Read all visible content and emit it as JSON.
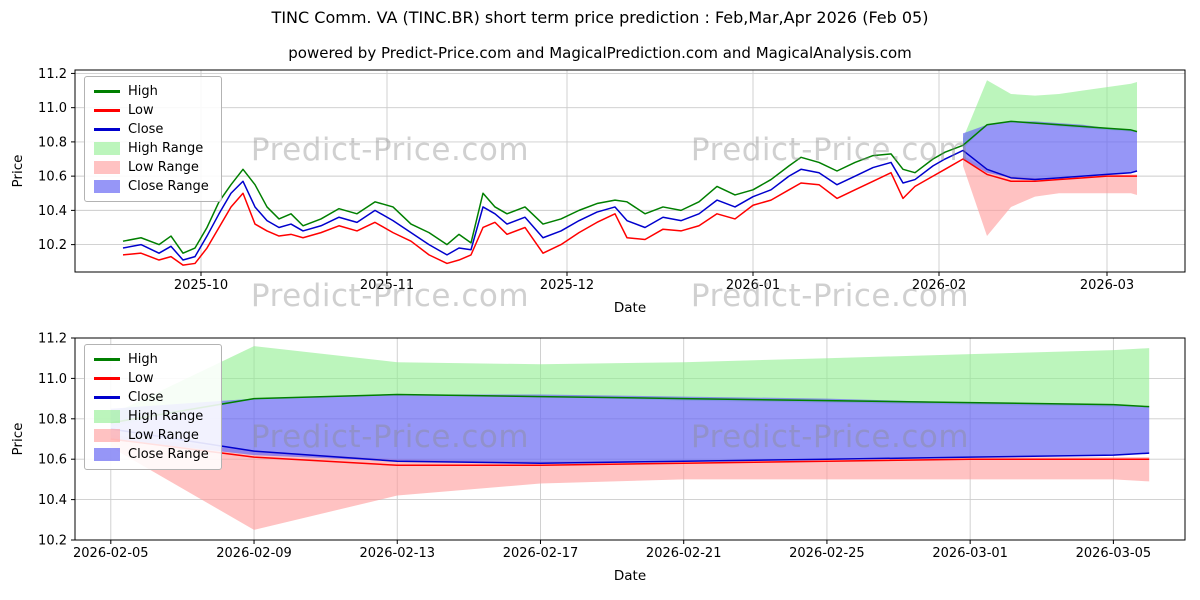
{
  "watermark": {
    "text": "Predict-Price.com"
  },
  "legend": {
    "position": "upper left",
    "entries": [
      {
        "key": "high",
        "label": "High",
        "swatch": "line",
        "color": "#007f00"
      },
      {
        "key": "low",
        "label": "Low",
        "swatch": "line",
        "color": "#ff0000"
      },
      {
        "key": "close",
        "label": "Close",
        "swatch": "line",
        "color": "#0000cd"
      },
      {
        "key": "high-range",
        "label": "High Range",
        "swatch": "patch",
        "color": "#90ee90",
        "opacity": 0.6
      },
      {
        "key": "low-range",
        "label": "Low Range",
        "swatch": "patch",
        "color": "#ff9999",
        "opacity": 0.6
      },
      {
        "key": "close-range",
        "label": "Close Range",
        "swatch": "patch",
        "color": "#6a6af4",
        "opacity": 0.7
      }
    ]
  },
  "chart_data": {
    "type": "line",
    "title": "TINC Comm. VA (TINC.BR) short term price prediction : Feb,Mar,Apr 2026 (Feb 05)",
    "subtitle": "powered by Predict-Price.com and MagicalPrediction.com and MagicalAnalysis.com",
    "styles": {
      "high_color": "#007f00",
      "low_color": "#ff0000",
      "close_color": "#0000cd",
      "high_range_color": "#90ee90",
      "high_range_opacity": 0.6,
      "low_range_color": "#ff9999",
      "low_range_opacity": 0.6,
      "close_range_color": "#6a6af4",
      "close_range_opacity": 0.7,
      "grid_color": "#cccccc"
    },
    "historical": {
      "dates": [
        "2025-09-18",
        "2025-09-21",
        "2025-09-24",
        "2025-09-26",
        "2025-09-28",
        "2025-09-30",
        "2025-10-02",
        "2025-10-04",
        "2025-10-06",
        "2025-10-08",
        "2025-10-10",
        "2025-10-12",
        "2025-10-14",
        "2025-10-16",
        "2025-10-18",
        "2025-10-21",
        "2025-10-24",
        "2025-10-27",
        "2025-10-30",
        "2025-11-02",
        "2025-11-05",
        "2025-11-08",
        "2025-11-11",
        "2025-11-13",
        "2025-11-15",
        "2025-11-17",
        "2025-11-19",
        "2025-11-21",
        "2025-11-24",
        "2025-11-27",
        "2025-11-30",
        "2025-12-03",
        "2025-12-06",
        "2025-12-09",
        "2025-12-11",
        "2025-12-14",
        "2025-12-17",
        "2025-12-20",
        "2025-12-23",
        "2025-12-26",
        "2025-12-29",
        "2026-01-01",
        "2026-01-04",
        "2026-01-07",
        "2026-01-09",
        "2026-01-12",
        "2026-01-15",
        "2026-01-18",
        "2026-01-21",
        "2026-01-24",
        "2026-01-26",
        "2026-01-28",
        "2026-01-31",
        "2026-02-02",
        "2026-02-05"
      ],
      "high": [
        10.22,
        10.24,
        10.2,
        10.25,
        10.15,
        10.18,
        10.3,
        10.45,
        10.55,
        10.64,
        10.55,
        10.42,
        10.35,
        10.38,
        10.31,
        10.35,
        10.41,
        10.38,
        10.45,
        10.42,
        10.32,
        10.27,
        10.2,
        10.26,
        10.21,
        10.5,
        10.42,
        10.38,
        10.42,
        10.32,
        10.35,
        10.4,
        10.44,
        10.46,
        10.45,
        10.38,
        10.42,
        10.4,
        10.45,
        10.54,
        10.49,
        10.52,
        10.58,
        10.66,
        10.71,
        10.68,
        10.63,
        10.68,
        10.72,
        10.73,
        10.64,
        10.62,
        10.7,
        10.74,
        10.78
      ],
      "low": [
        10.14,
        10.15,
        10.11,
        10.13,
        10.08,
        10.09,
        10.18,
        10.3,
        10.42,
        10.5,
        10.32,
        10.28,
        10.25,
        10.26,
        10.24,
        10.27,
        10.31,
        10.28,
        10.33,
        10.27,
        10.22,
        10.14,
        10.09,
        10.11,
        10.14,
        10.3,
        10.33,
        10.26,
        10.3,
        10.15,
        10.2,
        10.27,
        10.33,
        10.38,
        10.24,
        10.23,
        10.29,
        10.28,
        10.31,
        10.38,
        10.35,
        10.43,
        10.46,
        10.52,
        10.56,
        10.55,
        10.47,
        10.52,
        10.57,
        10.62,
        10.47,
        10.54,
        10.6,
        10.64,
        10.7
      ],
      "close": [
        10.18,
        10.2,
        10.15,
        10.19,
        10.11,
        10.13,
        10.25,
        10.38,
        10.5,
        10.57,
        10.42,
        10.34,
        10.3,
        10.32,
        10.28,
        10.31,
        10.36,
        10.33,
        10.4,
        10.34,
        10.27,
        10.2,
        10.14,
        10.18,
        10.17,
        10.42,
        10.38,
        10.32,
        10.36,
        10.24,
        10.28,
        10.34,
        10.39,
        10.42,
        10.34,
        10.3,
        10.36,
        10.34,
        10.38,
        10.46,
        10.42,
        10.48,
        10.52,
        10.6,
        10.64,
        10.62,
        10.55,
        10.6,
        10.65,
        10.68,
        10.56,
        10.58,
        10.66,
        10.7,
        10.75
      ]
    },
    "prediction": {
      "dates": [
        "2026-02-05",
        "2026-02-09",
        "2026-02-13",
        "2026-02-17",
        "2026-02-21",
        "2026-02-25",
        "2026-03-01",
        "2026-03-05",
        "2026-03-06"
      ],
      "high": [
        10.78,
        10.9,
        10.92,
        10.91,
        10.9,
        10.89,
        10.88,
        10.87,
        10.86
      ],
      "low": [
        10.7,
        10.61,
        10.57,
        10.57,
        10.58,
        10.59,
        10.6,
        10.6,
        10.6
      ],
      "close": [
        10.75,
        10.64,
        10.59,
        10.58,
        10.59,
        10.6,
        10.61,
        10.62,
        10.63
      ],
      "high_range_upper": [
        10.82,
        11.16,
        11.08,
        11.07,
        11.08,
        11.1,
        11.12,
        11.14,
        11.15
      ],
      "high_range_lower": [
        10.76,
        10.9,
        10.92,
        10.91,
        10.89,
        10.88,
        10.87,
        10.86,
        10.86
      ],
      "close_range_upper": [
        10.85,
        10.9,
        10.92,
        10.92,
        10.91,
        10.9,
        10.88,
        10.87,
        10.86
      ],
      "close_range_lower": [
        10.7,
        10.62,
        10.59,
        10.58,
        10.59,
        10.6,
        10.61,
        10.62,
        10.63
      ],
      "low_range_upper": [
        10.72,
        10.64,
        10.6,
        10.59,
        10.59,
        10.6,
        10.61,
        10.61,
        10.61
      ],
      "low_range_lower": [
        10.66,
        10.25,
        10.42,
        10.48,
        10.5,
        10.5,
        10.5,
        10.5,
        10.49
      ]
    },
    "charts": [
      {
        "id": "overview",
        "xlabel": "Date",
        "ylabel": "Price",
        "ylim": [
          10.04,
          11.22
        ],
        "yticks": [
          10.2,
          10.4,
          10.6,
          10.8,
          11.0,
          11.2
        ],
        "xdomain": [
          "2025-09-10",
          "2026-03-14"
        ],
        "xticks": [
          {
            "d": "2025-10-01",
            "label": "2025-10"
          },
          {
            "d": "2025-11-01",
            "label": "2025-11"
          },
          {
            "d": "2025-12-01",
            "label": "2025-12"
          },
          {
            "d": "2026-01-01",
            "label": "2026-01"
          },
          {
            "d": "2026-02-01",
            "label": "2026-02"
          },
          {
            "d": "2026-03-01",
            "label": "2026-03"
          }
        ],
        "grid": true,
        "include_historical": true
      },
      {
        "id": "forecast",
        "xlabel": "Date",
        "ylabel": "Price",
        "ylim": [
          10.2,
          11.2
        ],
        "yticks": [
          10.2,
          10.4,
          10.6,
          10.8,
          11.0,
          11.2
        ],
        "xdomain": [
          "2026-02-04",
          "2026-03-07"
        ],
        "xticks": [
          {
            "d": "2026-02-05",
            "label": "2026-02-05"
          },
          {
            "d": "2026-02-09",
            "label": "2026-02-09"
          },
          {
            "d": "2026-02-13",
            "label": "2026-02-13"
          },
          {
            "d": "2026-02-17",
            "label": "2026-02-17"
          },
          {
            "d": "2026-02-21",
            "label": "2026-02-21"
          },
          {
            "d": "2026-02-25",
            "label": "2026-02-25"
          },
          {
            "d": "2026-03-01",
            "label": "2026-03-01"
          },
          {
            "d": "2026-03-05",
            "label": "2026-03-05"
          }
        ],
        "grid": true,
        "include_historical": false
      }
    ]
  }
}
